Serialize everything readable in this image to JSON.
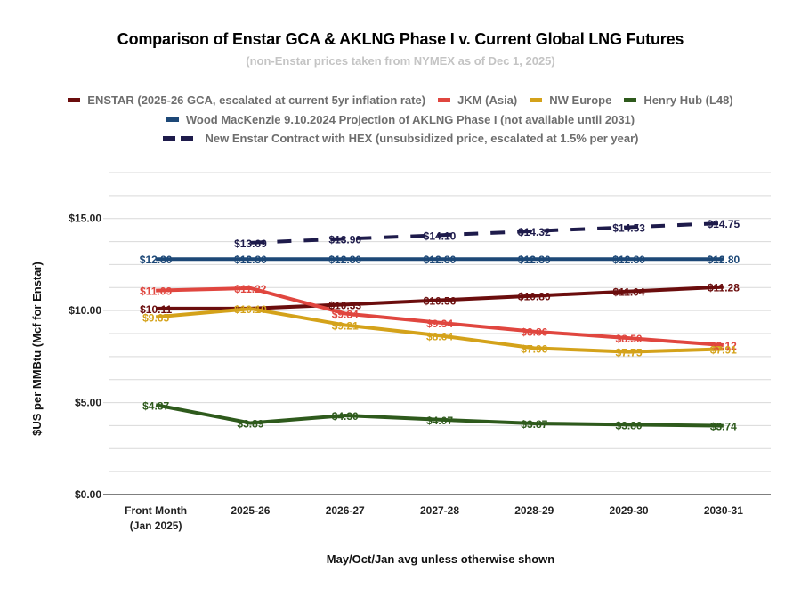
{
  "chart_data": {
    "type": "line",
    "title": "Comparison of Enstar GCA & AKLNG Phase I v. Current Global LNG Futures",
    "subtitle": "(non-Enstar prices taken from NYMEX as of Dec 1, 2025)",
    "xlabel": "May/Oct/Jan avg unless otherwise shown",
    "ylabel": "$US per MMBtu (Mcf for Enstar)",
    "ylim": [
      0,
      17.5
    ],
    "yticks": [
      0,
      5,
      10,
      15
    ],
    "ytick_labels": [
      "$0.00",
      "$5.00",
      "$10.00",
      "$15.00"
    ],
    "minor_gridlines_every": 1.25,
    "grid": true,
    "legend_position": "top",
    "categories": [
      [
        "Front Month",
        "(Jan 2025)"
      ],
      [
        "2025-26"
      ],
      [
        "2026-27"
      ],
      [
        "2027-28"
      ],
      [
        "2028-29"
      ],
      [
        "2029-30"
      ],
      [
        "2030-31"
      ]
    ],
    "series": [
      {
        "name": "ENSTAR (2025-26 GCA, escalated at current 5yr inflation rate)",
        "color": "#6b0d0d",
        "dashed": false,
        "values": [
          10.11,
          10.11,
          10.33,
          10.56,
          10.8,
          11.04,
          11.28
        ],
        "labels": [
          "$10.11",
          "",
          "$10.33",
          "$10.56",
          "$10.80",
          "$11.04",
          "$11.28"
        ]
      },
      {
        "name": "JKM (Asia)",
        "color": "#e0463f",
        "dashed": false,
        "values": [
          11.09,
          11.22,
          9.84,
          9.34,
          8.86,
          8.5,
          8.12
        ],
        "labels": [
          "$11.09",
          "$11.22",
          "$9.84",
          "$9.34",
          "$8.86",
          "$8.50",
          "$8.12"
        ]
      },
      {
        "name": "NW Europe",
        "color": "#d4a21a",
        "dashed": false,
        "values": [
          9.65,
          10.1,
          9.21,
          8.64,
          7.96,
          7.75,
          7.91
        ],
        "labels": [
          "$9.65",
          "$10.10",
          "$9.21",
          "$8.64",
          "$7.96",
          "$7.75",
          "$7.91"
        ]
      },
      {
        "name": "Henry Hub (L48)",
        "color": "#2e5a1c",
        "dashed": false,
        "values": [
          4.87,
          3.89,
          4.3,
          4.07,
          3.87,
          3.8,
          3.74
        ],
        "labels": [
          "$4.87",
          "$3.89",
          "$4.30",
          "$4.07",
          "$3.87",
          "$3.80",
          "$3.74"
        ]
      },
      {
        "name": "Wood MacKenzie 9.10.2024 Projection of AKLNG Phase I (not available until 2031)",
        "color": "#1d4877",
        "dashed": false,
        "values": [
          12.8,
          12.8,
          12.8,
          12.8,
          12.8,
          12.8,
          12.8
        ],
        "labels": [
          "$12.80",
          "$12.80",
          "$12.80",
          "$12.80",
          "$12.80",
          "$12.80",
          "$12.80"
        ]
      },
      {
        "name": "New Enstar Contract with HEX (unsubsidized price, escalated at 1.5% per year)",
        "color": "#1e1b4b",
        "dashed": true,
        "values": [
          null,
          13.69,
          13.9,
          14.1,
          14.32,
          14.53,
          14.75
        ],
        "labels": [
          "",
          "$13.69",
          "$13.90",
          "$14.10",
          "$14.32",
          "$14.53",
          "$14.75"
        ]
      }
    ],
    "legend_rows": [
      [
        0,
        1,
        2,
        3
      ],
      [
        4
      ],
      [
        5
      ]
    ]
  }
}
